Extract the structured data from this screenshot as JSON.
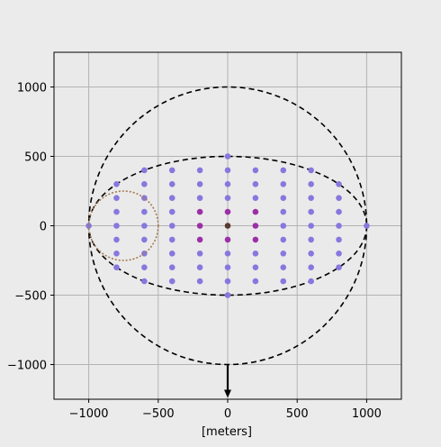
{
  "chart_data": {
    "type": "scatter",
    "title": "",
    "xlabel": "[meters]",
    "ylabel": "",
    "xlim": [
      -1250,
      1250
    ],
    "ylim": [
      -1250,
      1250
    ],
    "xticks": [
      -1000,
      -500,
      0,
      500,
      1000
    ],
    "yticks": [
      -1000,
      -500,
      0,
      500,
      1000
    ],
    "xtick_labels": [
      "−1000",
      "−500",
      "0",
      "500",
      "1000"
    ],
    "ytick_labels": [
      "−1000",
      "−500",
      "0",
      "500",
      "1000"
    ],
    "grid": true,
    "background": "#eaeaea",
    "colors": {
      "point": "#8678de",
      "inner_point": "#9b2fa6",
      "center_point": "#5a3b2f",
      "dashed": "#000000",
      "brown_circle": "#a67a52",
      "arrow": "#000000"
    },
    "dashed_shapes": [
      {
        "kind": "circle",
        "cx": 0,
        "cy": 0,
        "r": 1000
      },
      {
        "kind": "ellipse",
        "cx": 0,
        "cy": 0,
        "rx": 1000,
        "ry": 500
      }
    ],
    "brown_circle": {
      "cx": -750,
      "cy": 0,
      "r": 250
    },
    "arrow": {
      "x": 0,
      "y_start": -1000,
      "y_end": -1240
    },
    "grid_spacing": {
      "x": 200,
      "y": 100
    },
    "highlight_points": [
      [
        -200,
        100
      ],
      [
        0,
        100
      ],
      [
        200,
        100
      ],
      [
        -200,
        0
      ],
      [
        200,
        0
      ],
      [
        -200,
        -100
      ],
      [
        0,
        -100
      ],
      [
        200,
        -100
      ]
    ],
    "center_point": [
      0,
      0
    ]
  }
}
